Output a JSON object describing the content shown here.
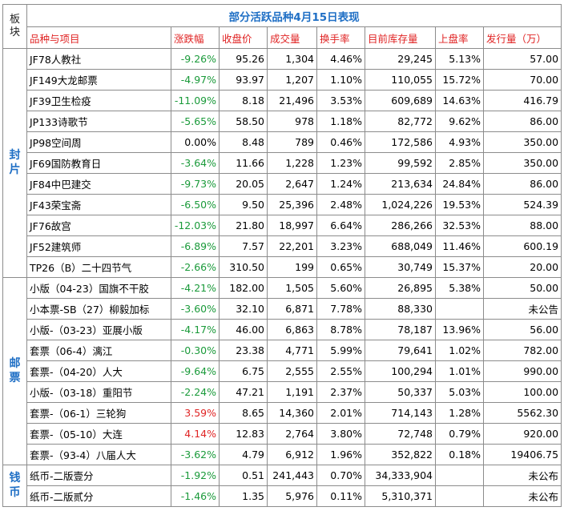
{
  "corner": "板块",
  "title": "部分活跃品种4月15日表现",
  "header": [
    "品种与项目",
    "涨跌幅",
    "收盘价",
    "成交量",
    "换手率",
    "目前库存量",
    "上盘率",
    "发行量（万）"
  ],
  "sections": [
    {
      "label": "封片",
      "rows": [
        [
          "JF78人教社",
          "-9.26%",
          "95.26",
          "1,304",
          "4.46%",
          "29,245",
          "5.13%",
          "57.00"
        ],
        [
          "JF149大龙邮票",
          "-4.97%",
          "93.97",
          "1,207",
          "1.10%",
          "110,055",
          "15.72%",
          "70.00"
        ],
        [
          "JF39卫生检疫",
          "-11.09%",
          "8.18",
          "21,496",
          "3.53%",
          "609,689",
          "14.63%",
          "416.79"
        ],
        [
          "JP133诗歌节",
          "-5.65%",
          "58.50",
          "978",
          "1.18%",
          "82,772",
          "9.62%",
          "86.00"
        ],
        [
          "JP98空间周",
          "0.00%",
          "8.48",
          "789",
          "0.46%",
          "172,586",
          "4.93%",
          "350.00"
        ],
        [
          "JF69国防教育日",
          "-3.64%",
          "11.66",
          "1,228",
          "1.23%",
          "99,592",
          "2.85%",
          "350.00"
        ],
        [
          "JF84中巴建交",
          "-9.73%",
          "20.05",
          "2,647",
          "1.24%",
          "213,634",
          "24.84%",
          "86.00"
        ],
        [
          "JF43荣宝斋",
          "-6.50%",
          "9.50",
          "25,396",
          "2.48%",
          "1,024,226",
          "19.53%",
          "524.39"
        ],
        [
          "JF76故宫",
          "-12.03%",
          "21.80",
          "18,997",
          "6.64%",
          "286,266",
          "32.53%",
          "88.00"
        ],
        [
          "JF52建筑师",
          "-6.89%",
          "7.57",
          "22,201",
          "3.23%",
          "688,049",
          "11.46%",
          "600.19"
        ],
        [
          "TP26（B）二十四节气",
          "-2.66%",
          "310.50",
          "199",
          "0.65%",
          "30,749",
          "15.37%",
          "20.00"
        ]
      ]
    },
    {
      "label": "邮票",
      "rows": [
        [
          "小版（04-23）国旗不干胶",
          "-4.21%",
          "182.00",
          "1,505",
          "5.60%",
          "26,895",
          "5.38%",
          "50.00"
        ],
        [
          "小本票-SB（27）柳毅加标",
          "-3.60%",
          "32.10",
          "6,871",
          "7.78%",
          "88,330",
          null,
          "未公告"
        ],
        [
          "小版-（03-23）亚展小版",
          "-4.17%",
          "46.00",
          "6,863",
          "8.78%",
          "78,187",
          "13.96%",
          "56.00"
        ],
        [
          "套票（06-4）漓江",
          "-0.30%",
          "23.38",
          "4,771",
          "5.99%",
          "79,641",
          "1.02%",
          "782.00"
        ],
        [
          "套票-（04-20）人大",
          "-9.64%",
          "6.75",
          "2,555",
          "2.55%",
          "100,294",
          "1.01%",
          "990.00"
        ],
        [
          "小版-（03-18）重阳节",
          "-2.24%",
          "47.21",
          "1,191",
          "2.37%",
          "50,337",
          "5.03%",
          "100.00"
        ],
        [
          "套票-（06-1）三轮狗",
          "3.59%",
          "8.65",
          "14,360",
          "2.01%",
          "714,143",
          "1.28%",
          "5562.30"
        ],
        [
          "套票-（05-10）大连",
          "4.14%",
          "12.83",
          "2,764",
          "3.80%",
          "72,748",
          "0.79%",
          "920.00"
        ],
        [
          "套票-（93-4）八届人大",
          "-3.62%",
          "4.79",
          "6,912",
          "1.96%",
          "352,822",
          "0.18%",
          "19406.75"
        ]
      ]
    },
    {
      "label": "钱币",
      "rows": [
        [
          "纸币-二版壹分",
          "-1.92%",
          "0.51",
          "241,443",
          "0.70%",
          "34,333,904",
          null,
          "未公布"
        ],
        [
          "纸币-二版贰分",
          "-1.46%",
          "1.35",
          "5,976",
          "0.11%",
          "5,310,371",
          null,
          "未公布"
        ]
      ]
    }
  ]
}
